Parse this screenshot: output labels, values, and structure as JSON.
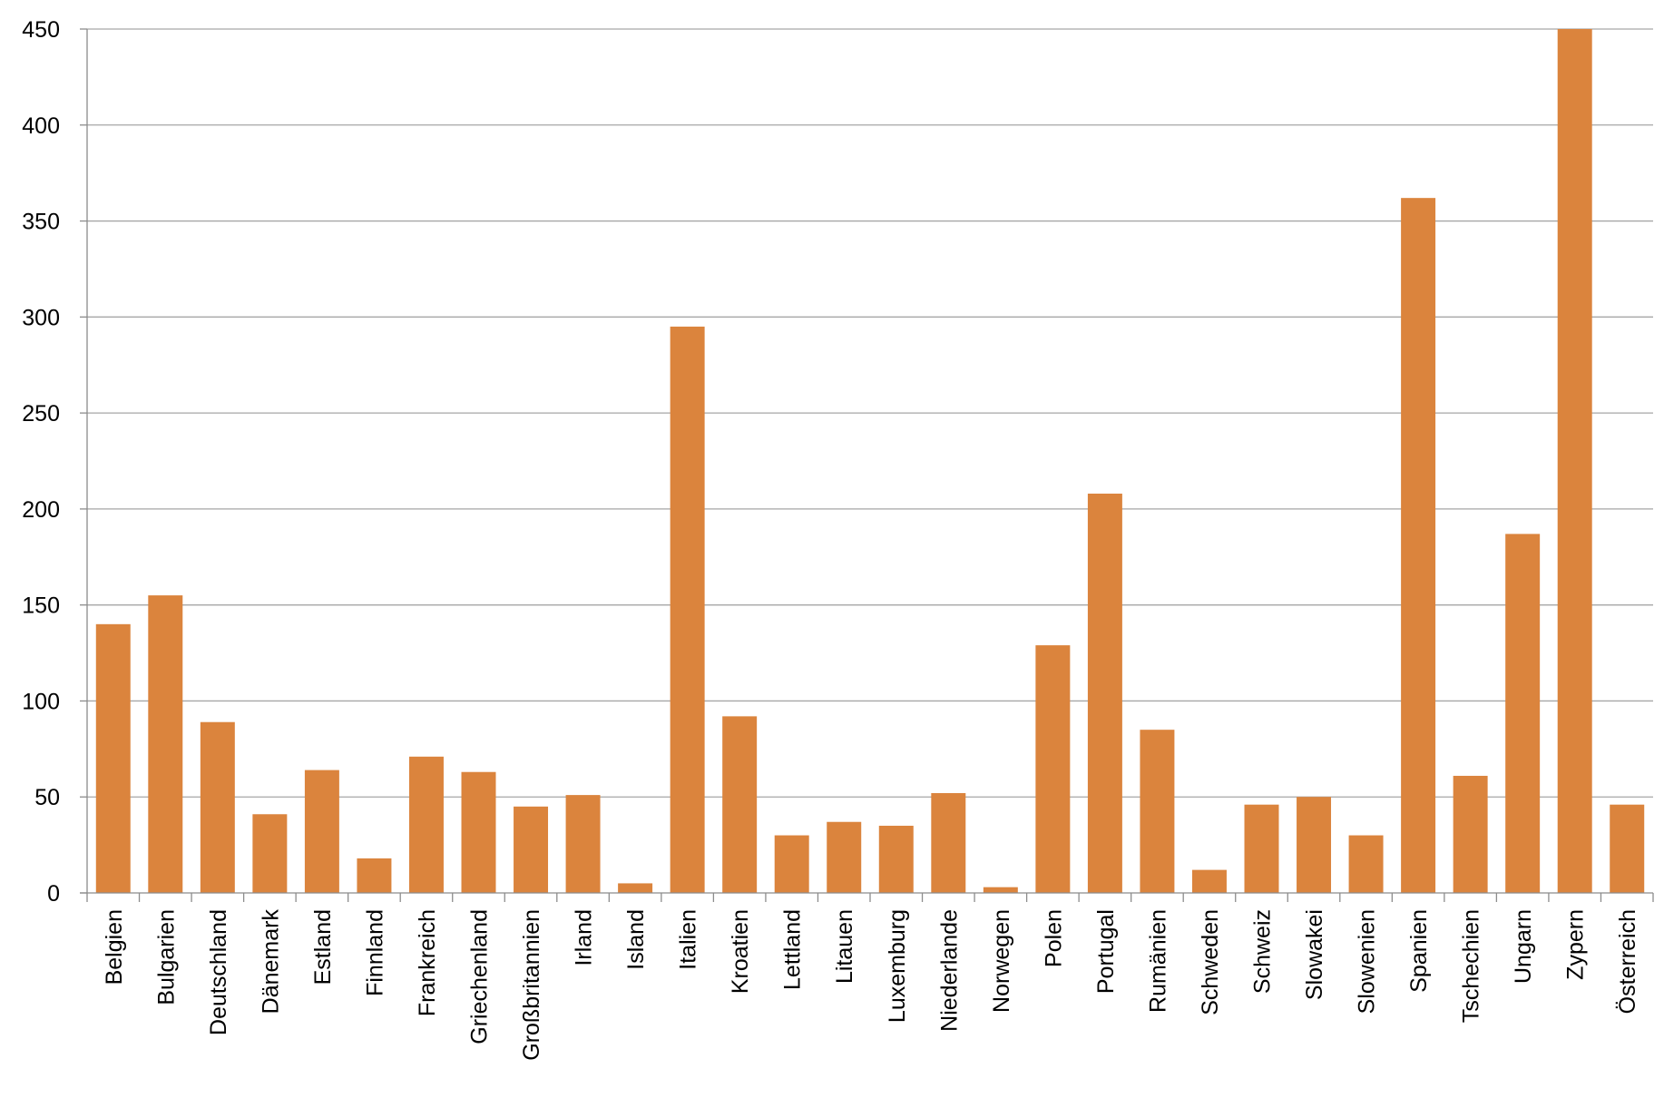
{
  "chart_data": {
    "type": "bar",
    "title": "",
    "xlabel": "",
    "ylabel": "",
    "ylim": [
      0,
      450
    ],
    "yticks": [
      0,
      50,
      100,
      150,
      200,
      250,
      300,
      350,
      400,
      450
    ],
    "grid": true,
    "legend": "none",
    "bar_color": "#DB843D",
    "categories": [
      "Belgien",
      "Bulgarien",
      "Deutschland",
      "Dänemark",
      "Estland",
      "Finnland",
      "Frankreich",
      "Griechenland",
      "Großbritannien",
      "Irland",
      "Island",
      "Italien",
      "Kroatien",
      "Lettland",
      "Litauen",
      "Luxemburg",
      "Niederlande",
      "Norwegen",
      "Polen",
      "Portugal",
      "Rumänien",
      "Schweden",
      "Schweiz",
      "Slowakei",
      "Slowenien",
      "Spanien",
      "Tschechien",
      "Ungarn",
      "Zypern",
      "Österreich"
    ],
    "values": [
      140,
      155,
      89,
      41,
      64,
      18,
      71,
      63,
      45,
      51,
      5,
      295,
      92,
      30,
      37,
      35,
      52,
      3,
      129,
      208,
      85,
      12,
      46,
      50,
      30,
      362,
      61,
      187,
      450,
      46
    ]
  }
}
